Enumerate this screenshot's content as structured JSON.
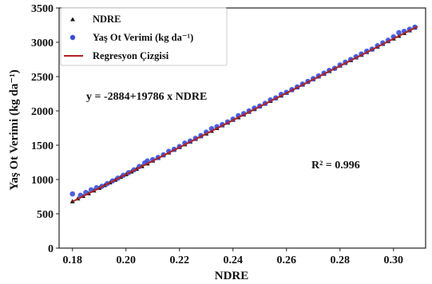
{
  "chart_data": {
    "type": "scatter",
    "xlabel": "NDRE",
    "ylabel": "Yaş Ot Verimi (kg da⁻¹)",
    "xlim": [
      0.175,
      0.312
    ],
    "ylim": [
      0,
      3500
    ],
    "x_ticks": [
      "0.18",
      "0.20",
      "0.22",
      "0.24",
      "0.26",
      "0.28",
      "0.30"
    ],
    "y_ticks": [
      "0",
      "500",
      "1000",
      "1500",
      "2000",
      "2500",
      "3000",
      "3500"
    ],
    "grid": true,
    "legend_position": "top-left",
    "regression": {
      "intercept": -2884,
      "slope": 19786,
      "x_range": [
        0.18,
        0.309
      ],
      "color": "#b22222"
    },
    "annotations": {
      "equation": "y = -2884+19786 x NDRE",
      "r_squared": "R² = 0.996"
    },
    "series": [
      {
        "name": "NDRE",
        "marker": "triangle",
        "color": "#111111",
        "points": [
          [
            0.18,
            680
          ],
          [
            0.182,
            720
          ],
          [
            0.184,
            756
          ],
          [
            0.186,
            796
          ],
          [
            0.188,
            836
          ],
          [
            0.19,
            875
          ],
          [
            0.192,
            915
          ],
          [
            0.194,
            954
          ],
          [
            0.196,
            994
          ],
          [
            0.198,
            1034
          ],
          [
            0.2,
            1073
          ],
          [
            0.202,
            1113
          ],
          [
            0.204,
            1152
          ],
          [
            0.206,
            1192
          ],
          [
            0.208,
            1231
          ],
          [
            0.21,
            1271
          ],
          [
            0.212,
            1311
          ],
          [
            0.214,
            1350
          ],
          [
            0.216,
            1390
          ],
          [
            0.218,
            1429
          ],
          [
            0.22,
            1469
          ],
          [
            0.222,
            1509
          ],
          [
            0.224,
            1548
          ],
          [
            0.226,
            1588
          ],
          [
            0.228,
            1627
          ],
          [
            0.23,
            1667
          ],
          [
            0.232,
            1706
          ],
          [
            0.234,
            1746
          ],
          [
            0.236,
            1786
          ],
          [
            0.238,
            1825
          ],
          [
            0.24,
            1865
          ],
          [
            0.242,
            1904
          ],
          [
            0.244,
            1944
          ],
          [
            0.246,
            1983
          ],
          [
            0.248,
            2023
          ],
          [
            0.25,
            2063
          ],
          [
            0.252,
            2102
          ],
          [
            0.254,
            2142
          ],
          [
            0.256,
            2181
          ],
          [
            0.258,
            2221
          ],
          [
            0.26,
            2260
          ],
          [
            0.262,
            2300
          ],
          [
            0.264,
            2340
          ],
          [
            0.266,
            2379
          ],
          [
            0.268,
            2419
          ],
          [
            0.27,
            2458
          ],
          [
            0.272,
            2498
          ],
          [
            0.274,
            2537
          ],
          [
            0.276,
            2577
          ],
          [
            0.278,
            2617
          ],
          [
            0.28,
            2656
          ],
          [
            0.282,
            2696
          ],
          [
            0.284,
            2735
          ],
          [
            0.286,
            2775
          ],
          [
            0.288,
            2814
          ],
          [
            0.29,
            2854
          ],
          [
            0.292,
            2894
          ],
          [
            0.294,
            2933
          ],
          [
            0.296,
            2973
          ],
          [
            0.298,
            3012
          ],
          [
            0.3,
            3052
          ],
          [
            0.302,
            3091
          ],
          [
            0.304,
            3131
          ],
          [
            0.306,
            3171
          ],
          [
            0.308,
            3210
          ]
        ]
      },
      {
        "name": "Yaş Ot Verimi (kg da⁻¹)",
        "marker": "circle",
        "color": "#3a4fd8",
        "points": [
          [
            0.18,
            790
          ],
          [
            0.183,
            770
          ],
          [
            0.185,
            810
          ],
          [
            0.187,
            850
          ],
          [
            0.189,
            880
          ],
          [
            0.191,
            900
          ],
          [
            0.193,
            940
          ],
          [
            0.195,
            980
          ],
          [
            0.197,
            1020
          ],
          [
            0.199,
            1060
          ],
          [
            0.201,
            1100
          ],
          [
            0.203,
            1140
          ],
          [
            0.205,
            1190
          ],
          [
            0.207,
            1240
          ],
          [
            0.208,
            1270
          ],
          [
            0.21,
            1290
          ],
          [
            0.212,
            1320
          ],
          [
            0.214,
            1360
          ],
          [
            0.216,
            1410
          ],
          [
            0.218,
            1440
          ],
          [
            0.22,
            1480
          ],
          [
            0.222,
            1530
          ],
          [
            0.224,
            1560
          ],
          [
            0.226,
            1600
          ],
          [
            0.228,
            1640
          ],
          [
            0.23,
            1690
          ],
          [
            0.232,
            1740
          ],
          [
            0.234,
            1770
          ],
          [
            0.236,
            1800
          ],
          [
            0.238,
            1840
          ],
          [
            0.24,
            1880
          ],
          [
            0.242,
            1930
          ],
          [
            0.244,
            1960
          ],
          [
            0.246,
            2000
          ],
          [
            0.248,
            2040
          ],
          [
            0.25,
            2070
          ],
          [
            0.252,
            2110
          ],
          [
            0.254,
            2160
          ],
          [
            0.256,
            2190
          ],
          [
            0.258,
            2240
          ],
          [
            0.26,
            2270
          ],
          [
            0.262,
            2310
          ],
          [
            0.264,
            2350
          ],
          [
            0.266,
            2390
          ],
          [
            0.268,
            2430
          ],
          [
            0.27,
            2470
          ],
          [
            0.272,
            2510
          ],
          [
            0.274,
            2550
          ],
          [
            0.276,
            2590
          ],
          [
            0.278,
            2620
          ],
          [
            0.28,
            2670
          ],
          [
            0.282,
            2710
          ],
          [
            0.284,
            2750
          ],
          [
            0.286,
            2790
          ],
          [
            0.288,
            2830
          ],
          [
            0.29,
            2870
          ],
          [
            0.292,
            2900
          ],
          [
            0.294,
            2950
          ],
          [
            0.296,
            2990
          ],
          [
            0.298,
            3030
          ],
          [
            0.3,
            3080
          ],
          [
            0.302,
            3140
          ],
          [
            0.304,
            3160
          ],
          [
            0.306,
            3190
          ],
          [
            0.308,
            3220
          ]
        ]
      },
      {
        "name": "Regresyon Çizgisi",
        "marker": "line",
        "color": "#b22222"
      }
    ]
  }
}
